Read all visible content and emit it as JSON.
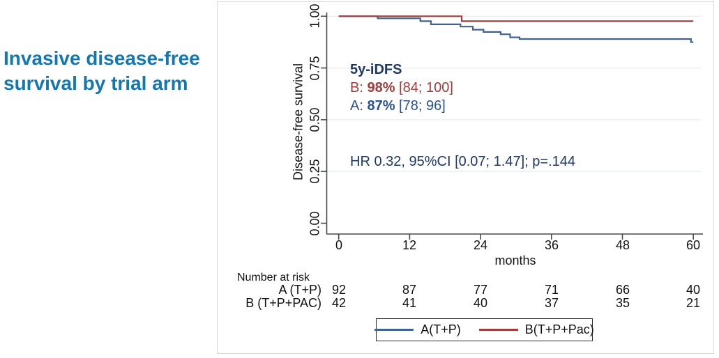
{
  "slide": {
    "title_lines": [
      "Invasive disease-free",
      "survival by trial arm"
    ],
    "title_color": "#1577b0"
  },
  "chart": {
    "ylabel": "Disease-free survival",
    "xlabel": "months",
    "y_ticks": [
      "1.00",
      "0.75",
      "0.50",
      "0.25",
      "0.00"
    ],
    "x_ticks": [
      "0",
      "12",
      "24",
      "36",
      "48",
      "60"
    ],
    "annotation": {
      "heading": "5y-iDFS",
      "b_prefix": "B: ",
      "b_value": "98%",
      "b_ci": " [84; 100]",
      "a_prefix": "A: ",
      "a_value": "87%",
      "a_ci": " [78; 96]",
      "hr_text": "HR 0.32, 95%CI [0.07; 1.47]; p=.144"
    },
    "colors": {
      "a_line": "#3e638e",
      "b_line": "#9e3d3e",
      "navy_text": "#1f3864",
      "a_text": "#2a5291",
      "red_text": "#a03c3c",
      "grid": "#e7eef4",
      "axis": "#4a4a4a",
      "frame_border": "#d8d8d8"
    }
  },
  "risk_table": {
    "heading": "Number at risk",
    "rows": [
      {
        "label": "A (T+P)",
        "values": [
          "92",
          "87",
          "77",
          "71",
          "66",
          "40"
        ]
      },
      {
        "label": "B (T+P+PAC)",
        "values": [
          "42",
          "41",
          "40",
          "37",
          "35",
          "21"
        ]
      }
    ]
  },
  "legend": {
    "items": [
      {
        "label": "A(T+P)",
        "color": "#3e638e"
      },
      {
        "label": "B(T+P+Pac)",
        "color": "#9e3d3e"
      }
    ]
  },
  "chart_data": {
    "type": "line",
    "subtype": "kaplan-meier-step",
    "title": "Invasive disease-free survival by trial arm",
    "xlabel": "months",
    "ylabel": "Disease-free survival",
    "xlim": [
      0,
      60
    ],
    "ylim": [
      0.0,
      1.0
    ],
    "x_tick_values": [
      0,
      12,
      24,
      36,
      48,
      60
    ],
    "y_tick_values": [
      0,
      0.25,
      0.5,
      0.75,
      1
    ],
    "grid": "horizontal-light",
    "legend_position": "bottom-box",
    "series": [
      {
        "name": "A(T+P)",
        "color": "#3e638e",
        "step": true,
        "points": [
          [
            0,
            1
          ],
          [
            6.6,
            1
          ],
          [
            6.6,
            0.99
          ],
          [
            13.8,
            0.99
          ],
          [
            13.8,
            0.976
          ],
          [
            15.6,
            0.976
          ],
          [
            15.6,
            0.961
          ],
          [
            20.6,
            0.961
          ],
          [
            20.6,
            0.95
          ],
          [
            22.7,
            0.95
          ],
          [
            22.7,
            0.935
          ],
          [
            24.5,
            0.935
          ],
          [
            24.5,
            0.924
          ],
          [
            27.4,
            0.924
          ],
          [
            27.4,
            0.913
          ],
          [
            29,
            0.913
          ],
          [
            29,
            0.898
          ],
          [
            30.6,
            0.898
          ],
          [
            30.6,
            0.89
          ],
          [
            59.6,
            0.89
          ],
          [
            59.6,
            0.875
          ],
          [
            60,
            0.875
          ]
        ]
      },
      {
        "name": "B(T+P+Pac)",
        "color": "#9e3d3e",
        "step": true,
        "points": [
          [
            0,
            1
          ],
          [
            20.8,
            1
          ],
          [
            20.8,
            0.976
          ],
          [
            60,
            0.976
          ]
        ]
      }
    ],
    "annotations": [
      "5y-iDFS",
      "B: 98% [84; 100]",
      "A: 87% [78; 96]",
      "HR 0.32, 95%CI [0.07; 1.47]; p=.144"
    ],
    "number_at_risk": {
      "times": [
        0,
        12,
        24,
        36,
        48,
        60
      ],
      "rows": [
        {
          "label": "A (T+P)",
          "counts": [
            92,
            87,
            77,
            71,
            66,
            40
          ]
        },
        {
          "label": "B (T+P+PAC)",
          "counts": [
            42,
            41,
            40,
            37,
            35,
            21
          ]
        }
      ]
    }
  }
}
